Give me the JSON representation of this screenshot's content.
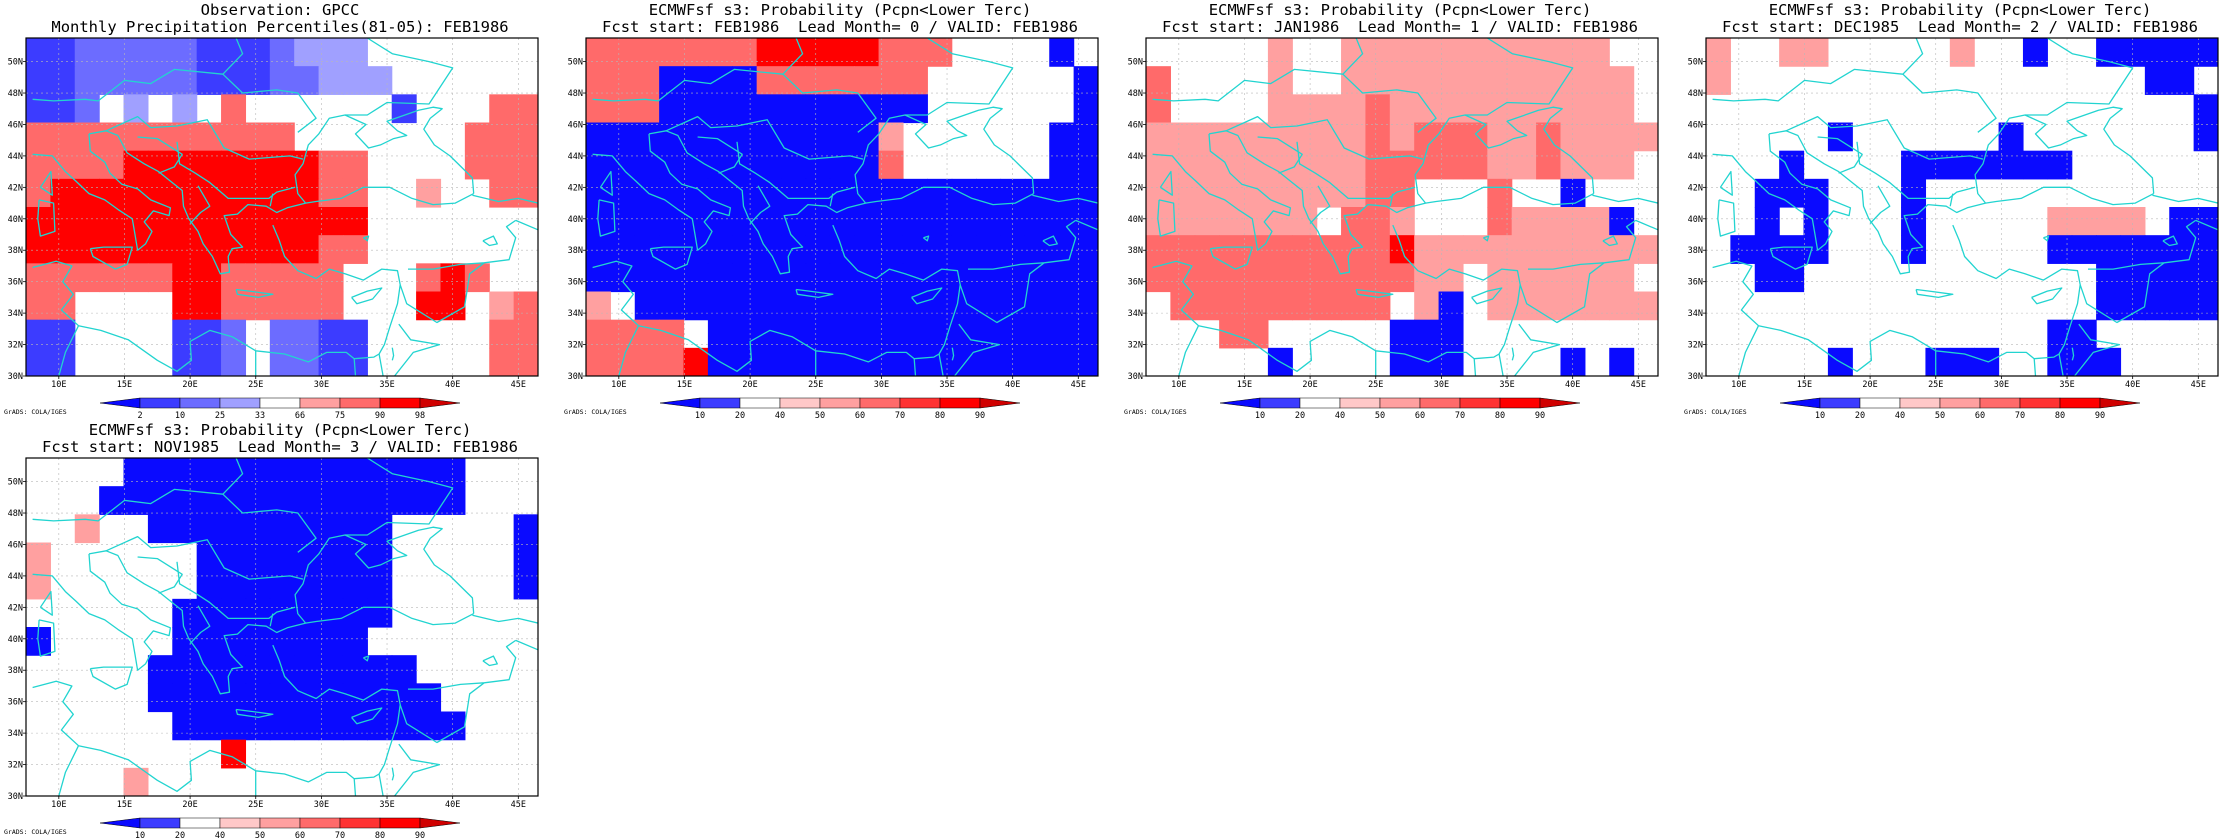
{
  "credit": "GrADS: COLA/IGES",
  "grid": {
    "lon_min": 7.5,
    "lon_max": 46.5,
    "lat_min": 30.0,
    "lat_max": 51.5
  },
  "colors": {
    "coast": "#22d4d0",
    "blue_dark": "#0a0aff",
    "blue_mid": "#3c3cff",
    "blue_light": "#6c6cff",
    "blue_pale": "#a0a0ff",
    "red_dark": "#ff0000",
    "red_mid": "#ff6a6a",
    "red_light": "#ffa0a0",
    "red_pale": "#ffc8c8",
    "white": "#ffffff"
  },
  "axes": {
    "x_ticks": [
      "10E",
      "15E",
      "20E",
      "25E",
      "30E",
      "35E",
      "40E",
      "45E"
    ],
    "x_tick_values": [
      10,
      15,
      20,
      25,
      30,
      35,
      40,
      45
    ],
    "y_ticks": [
      "30N",
      "32N",
      "34N",
      "36N",
      "38N",
      "40N",
      "42N",
      "44N",
      "46N",
      "48N",
      "50N"
    ],
    "y_tick_values": [
      30,
      32,
      34,
      36,
      38,
      40,
      42,
      44,
      46,
      48,
      50
    ]
  },
  "panels": [
    {
      "title_line1": "Observation: GPCC",
      "title_line2": "Monthly Precipitation Percentiles(81-05): FEB1986",
      "legend": {
        "labels": [
          "2",
          "10",
          "25",
          "33",
          "66",
          "75",
          "90",
          "98"
        ],
        "colors": [
          "#0a0aff",
          "#3c3cff",
          "#6c6cff",
          "#a0a0ff",
          "#ffffff",
          "#ffa0a0",
          "#ff6a6a",
          "#ff0000",
          "#d00000"
        ]
      },
      "rows": [
        "bbcccccbbbcpppwwwwwww",
        "bbcccccbbbccpppwwwwww",
        "bbcwpwpwrwwwwwwbwwwrr",
        "rrrrrrrrrrrwwwwwwwrrr",
        "rrrrRRRRRRRRrrwwwwrrr",
        "rRRRRRRRRRRRrrwwlwwrr",
        "RRRRRRRRRRRRRRwwwwwww",
        "RRRRRRRRRRRRrrwwwwwww",
        "rrrrrrRRrrrrrwwwrRrww",
        "rrwwwwRRrrrrrwwwRRwlr",
        "bbwwwwbbcwccbbwwwwwrr",
        "bbwwwwbbcwccbbwwwwwrr"
      ]
    },
    {
      "title_line1": "ECMWFsf s3: Probability (Pcpn<Lower Terc)",
      "title_line2": "Fcst start: FEB1986  Lead Month= 0 / VALID: FEB1986",
      "legend": {
        "labels": [
          "10",
          "20",
          "40",
          "50",
          "60",
          "70",
          "80",
          "90"
        ],
        "colors": [
          "#0a0aff",
          "#3c3cff",
          "#ffffff",
          "#ffc8c8",
          "#ffa0a0",
          "#ff6a6a",
          "#ff3232",
          "#ff0000",
          "#d00000"
        ]
      },
      "rows": [
        "rrrrrrrRRRRRrrrwwwwBw",
        "rrrBBBBrrrrrrrwwwwwwB",
        "rrrBBBBBBBBBBBwwwwwwB",
        "BBBBBBBBBBBBlwwwwwwBB",
        "BBBBBBBBBBBBrwwwwwwBB",
        "BBBBBBBBBBBBBBBBBBBBB",
        "BBBBBBBBBBBBBBBBBBBBB",
        "BBBBBBBBBBBBBBBBBBBBB",
        "BBBBBBBBBBBBBBBBBBBBB",
        "lwBBBBBBBBBBBBBBBBBBB",
        "rrrrwBBBBBBBBBBBBBBBB",
        "rrrrRBBBBBBBBBBBBBBBB"
      ]
    },
    {
      "title_line1": "ECMWFsf s3: Probability (Pcpn<Lower Terc)",
      "title_line2": "Fcst start: JAN1986  Lead Month= 1 / VALID: FEB1986",
      "legend": {
        "labels": [
          "10",
          "20",
          "40",
          "50",
          "60",
          "70",
          "80",
          "90"
        ],
        "colors": [
          "#0a0aff",
          "#3c3cff",
          "#ffffff",
          "#ffc8c8",
          "#ffa0a0",
          "#ff6a6a",
          "#ff3232",
          "#ff0000",
          "#d00000"
        ]
      },
      "rows": [
        "wwwwwlwwlllllllllllww",
        "rwwwwlwwllllllllllllw",
        "rwwwwllllrllllllllllw",
        "lllllllllrlrrrllrllll",
        "lllllllllrrrrrllrlllw",
        "lllllllllrrwwwrwwBwww",
        "lllllllwrrlwwwrllllBw",
        "rrrrrrrrrrRllllllllll",
        "rrrrrrrrrrrllwllllllw",
        "wrrrrrrrrrwlBwlllllll",
        "wwwrrwwwwwBBBwwwwwwww",
        "wwwwwBwwwwBBBwwwwBwBw"
      ]
    },
    {
      "title_line1": "ECMWFsf s3: Probability (Pcpn<Lower Terc)",
      "title_line2": "Fcst start: DEC1985  Lead Month= 2 / VALID: FEB1986",
      "legend": {
        "labels": [
          "10",
          "20",
          "40",
          "50",
          "60",
          "70",
          "80",
          "90"
        ],
        "colors": [
          "#0a0aff",
          "#3c3cff",
          "#ffffff",
          "#ffc8c8",
          "#ffa0a0",
          "#ff6a6a",
          "#ff3232",
          "#ff0000",
          "#d00000"
        ]
      },
      "rows": [
        "lwwllwwwwwlwwBwwBBBBB",
        "lwwwwwwwwwwwwwwwwwBBw",
        "wwwwwwwwwwwwwwwwwwwwB",
        "wwwwwBwwwwwwBwwwwwwwB",
        "wwwBwwwwBBBBBBBwwwwww",
        "wwBBBwwwBwwwwwwwwwwww",
        "wwBwBwwwBwwwwwllllwBB",
        "wBBBBwwwBwwwwwBBBBBBB",
        "wwBBwwwwwwwwwwwwBBBBB",
        "wwwwwwwwwwwwwwwwBBBBB",
        "wwwwwwwwwwwwwwBBwwwww",
        "wwwwwBwwwBBBwwBBBwwww"
      ]
    },
    {
      "title_line1": "ECMWFsf s3: Probability (Pcpn<Lower Terc)",
      "title_line2": "Fcst start: NOV1985  Lead Month= 3 / VALID: FEB1986",
      "legend": {
        "labels": [
          "10",
          "20",
          "40",
          "50",
          "60",
          "70",
          "80",
          "90"
        ],
        "colors": [
          "#0a0aff",
          "#3c3cff",
          "#ffffff",
          "#ffc8c8",
          "#ffa0a0",
          "#ff6a6a",
          "#ff3232",
          "#ff0000",
          "#d00000"
        ]
      },
      "rows": [
        "wwwwBBBBBBBBBBBBBBwww",
        "wwwBBBBBBBBBBBBBBBwww",
        "wwlwwBBBBBBBBBBwwwwwB",
        "lwwwwwwBBBBBBBBwwwwwB",
        "lwwwwwwBBBBBBBBwwwwwB",
        "wwwwwwBBBBBBBBBwwwwww",
        "BwwwwwBBBBBBBBwwwwwww",
        "wwwwwBBBBBBBBBBBwwwww",
        "wwwwwBBBBBBBBBBBBwwww",
        "wwwwwwBBBBBBBBBBBBwww",
        "wwwwwwwwRwwwwwwwwwwww",
        "wwwwlwwwwwwwwwwwwwwww"
      ]
    }
  ]
}
